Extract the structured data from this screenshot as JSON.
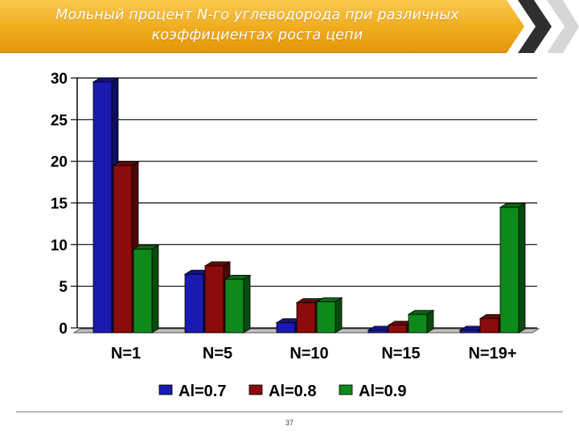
{
  "slide": {
    "title_line1": "Мольный процент N-го углеводорода при различных",
    "title_line2": "коэффициентах роста цепи",
    "page_number": "37",
    "banner_color": "#f0ab1c"
  },
  "chart_data": {
    "type": "bar",
    "style": "3d-clustered",
    "categories": [
      "N=1",
      "N=5",
      "N=10",
      "N=15",
      "N=19+"
    ],
    "series": [
      {
        "name": "Al=0.7",
        "color": "#1a1ab0",
        "values": [
          30,
          7,
          1.2,
          0.3,
          0.3
        ]
      },
      {
        "name": "Al=0.8",
        "color": "#8c0b0b",
        "values": [
          20,
          8,
          3.6,
          0.9,
          1.7
        ]
      },
      {
        "name": "Al=0.9",
        "color": "#0d8a1a",
        "values": [
          10,
          6.4,
          3.7,
          2.2,
          15
        ]
      }
    ],
    "ylim": [
      0,
      30
    ],
    "yticks": [
      0,
      5,
      10,
      15,
      20,
      25,
      30
    ],
    "grid": true,
    "legend_position": "bottom"
  }
}
